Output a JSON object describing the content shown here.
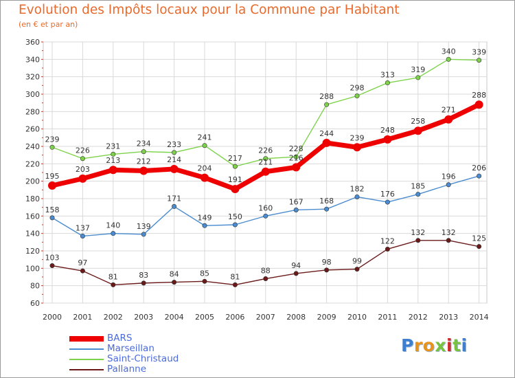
{
  "title": "Evolution des Impôts locaux pour la Commune par Habitant",
  "subtitle": "(en € et par an)",
  "logo": {
    "text": "Proxiti",
    "letter_colors": [
      "#3f7fd0",
      "#e8931e",
      "#e8931e",
      "#7ac142",
      "#d02a2a",
      "#7ac142",
      "#3f7fd0"
    ]
  },
  "chart_data": {
    "type": "line",
    "title": "Evolution des Impôts locaux pour la Commune par Habitant",
    "subtitle": "(en € et par an)",
    "xlabel": "",
    "ylabel": "",
    "x": [
      "2000",
      "2001",
      "2002",
      "2003",
      "2004",
      "2005",
      "2006",
      "2007",
      "2008",
      "2009",
      "2010",
      "2011",
      "2012",
      "2013",
      "2014"
    ],
    "ylim": [
      60,
      360
    ],
    "yticks": [
      60,
      80,
      100,
      120,
      140,
      160,
      180,
      200,
      220,
      240,
      260,
      280,
      300,
      320,
      340,
      360
    ],
    "grid": true,
    "legend": "bottom-left",
    "series": [
      {
        "name": "BARS",
        "color": "#ee0000",
        "thick": true,
        "values": [
          195,
          203,
          213,
          212,
          214,
          204,
          191,
          211,
          216,
          244,
          239,
          248,
          258,
          271,
          288
        ]
      },
      {
        "name": "Marseillan",
        "color": "#4a8ccf",
        "thick": false,
        "values": [
          158,
          137,
          140,
          139,
          171,
          149,
          150,
          160,
          167,
          168,
          182,
          176,
          185,
          196,
          206
        ]
      },
      {
        "name": "Saint-Christaud",
        "color": "#7ed24a",
        "thick": false,
        "values": [
          239,
          226,
          231,
          234,
          233,
          241,
          217,
          226,
          228,
          288,
          298,
          313,
          319,
          340,
          339
        ]
      },
      {
        "name": "Pallanne",
        "color": "#6b1a1a",
        "thick": false,
        "values": [
          103,
          97,
          81,
          83,
          84,
          85,
          81,
          88,
          94,
          98,
          99,
          122,
          132,
          132,
          125
        ]
      }
    ]
  }
}
